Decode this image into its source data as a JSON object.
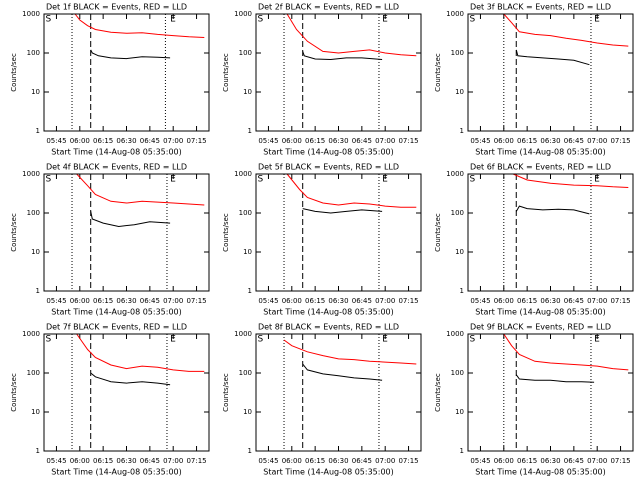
{
  "chart_data": [
    {
      "type": "line",
      "title": "Det 1f BLACK = Events, RED = LLD",
      "xlabel": "Start Time (14-Aug-08 05:35:00)",
      "ylabel": "Counts/sec",
      "ylog": true,
      "xlim": [
        "05:37",
        "07:23"
      ],
      "xticks": [
        "05:45",
        "06:00",
        "06:15",
        "06:30",
        "06:45",
        "07:00",
        "07:15"
      ],
      "ylim": [
        1,
        1000
      ],
      "yticks": [
        1,
        10,
        100,
        1000
      ],
      "vlines": [
        {
          "x": "05:55",
          "style": "dotted"
        },
        {
          "x": "06:07",
          "style": "dashed"
        },
        {
          "x": "06:55",
          "style": "dotted"
        }
      ],
      "markers": [
        {
          "label": "S",
          "x": "05:38"
        },
        {
          "label": "E",
          "x": "06:58"
        }
      ],
      "series": [
        {
          "color": "#000000",
          "x": [
            "06:07",
            "06:08",
            "06:12",
            "06:20",
            "06:30",
            "06:40",
            "06:50",
            "06:58"
          ],
          "values": [
            120,
            100,
            85,
            75,
            72,
            80,
            78,
            75
          ]
        },
        {
          "color": "#ff0000",
          "x": [
            "05:57",
            "06:00",
            "06:05",
            "06:10",
            "06:20",
            "06:30",
            "06:40",
            "06:50",
            "07:00",
            "07:10",
            "07:20"
          ],
          "values": [
            1000,
            700,
            500,
            400,
            340,
            320,
            330,
            300,
            280,
            260,
            250
          ]
        }
      ]
    },
    {
      "type": "line",
      "title": "Det 2f BLACK = Events, RED = LLD",
      "xlabel": "Start Time (14-Aug-08 05:35:00)",
      "ylabel": "Counts/sec",
      "ylog": true,
      "xlim": [
        "05:37",
        "07:23"
      ],
      "xticks": [
        "05:45",
        "06:00",
        "06:15",
        "06:30",
        "06:45",
        "07:00",
        "07:15"
      ],
      "ylim": [
        1,
        1000
      ],
      "yticks": [
        1,
        10,
        100,
        1000
      ],
      "vlines": [
        {
          "x": "05:55",
          "style": "dotted"
        },
        {
          "x": "06:07",
          "style": "dashed"
        },
        {
          "x": "06:56",
          "style": "dotted"
        }
      ],
      "markers": [
        {
          "label": "S",
          "x": "05:38"
        },
        {
          "label": "E",
          "x": "06:58"
        }
      ],
      "series": [
        {
          "color": "#000000",
          "x": [
            "06:07",
            "06:08",
            "06:15",
            "06:25",
            "06:35",
            "06:45",
            "06:58"
          ],
          "values": [
            110,
            85,
            70,
            68,
            75,
            75,
            68
          ]
        },
        {
          "color": "#ff0000",
          "x": [
            "05:57",
            "06:03",
            "06:10",
            "06:20",
            "06:30",
            "06:40",
            "06:50",
            "07:00",
            "07:10",
            "07:20"
          ],
          "values": [
            1000,
            400,
            200,
            110,
            100,
            110,
            120,
            100,
            90,
            85
          ]
        }
      ]
    },
    {
      "type": "line",
      "title": "Det 3f BLACK = Events, RED = LLD",
      "xlabel": "Start Time (14-Aug-08 05:35:00)",
      "ylabel": "Counts/sec",
      "ylog": true,
      "xlim": [
        "05:37",
        "07:23"
      ],
      "xticks": [
        "05:45",
        "06:00",
        "06:15",
        "06:30",
        "06:45",
        "07:00",
        "07:15"
      ],
      "ylim": [
        1,
        1000
      ],
      "yticks": [
        1,
        10,
        100,
        1000
      ],
      "vlines": [
        {
          "x": "06:00",
          "style": "dotted"
        },
        {
          "x": "06:08",
          "style": "dashed"
        },
        {
          "x": "06:56",
          "style": "dotted"
        }
      ],
      "markers": [
        {
          "label": "S",
          "x": "05:38"
        },
        {
          "label": "E",
          "x": "06:58"
        }
      ],
      "series": [
        {
          "color": "#000000",
          "x": [
            "06:08",
            "06:09",
            "06:15",
            "06:25",
            "06:35",
            "06:45",
            "06:55"
          ],
          "values": [
            120,
            85,
            80,
            75,
            70,
            65,
            50
          ]
        },
        {
          "color": "#ff0000",
          "x": [
            "06:00",
            "06:05",
            "06:10",
            "06:20",
            "06:30",
            "06:40",
            "06:50",
            "07:00",
            "07:10",
            "07:20"
          ],
          "values": [
            1000,
            600,
            350,
            300,
            280,
            240,
            210,
            180,
            160,
            150
          ]
        }
      ]
    },
    {
      "type": "line",
      "title": "Det 4f BLACK = Events, RED = LLD",
      "xlabel": "Start Time (14-Aug-08 05:35:00)",
      "ylabel": "Counts/sec",
      "ylog": true,
      "xlim": [
        "05:37",
        "07:23"
      ],
      "xticks": [
        "05:45",
        "06:00",
        "06:15",
        "06:30",
        "06:45",
        "07:00",
        "07:15"
      ],
      "ylim": [
        1,
        1000
      ],
      "yticks": [
        1,
        10,
        100,
        1000
      ],
      "vlines": [
        {
          "x": "05:55",
          "style": "dotted"
        },
        {
          "x": "06:07",
          "style": "dashed"
        },
        {
          "x": "06:56",
          "style": "dotted"
        }
      ],
      "markers": [
        {
          "label": "S",
          "x": "05:38"
        },
        {
          "label": "E",
          "x": "06:58"
        }
      ],
      "series": [
        {
          "color": "#000000",
          "x": [
            "06:07",
            "06:08",
            "06:15",
            "06:25",
            "06:35",
            "06:45",
            "06:58"
          ],
          "values": [
            110,
            70,
            55,
            45,
            50,
            60,
            55
          ]
        },
        {
          "color": "#ff0000",
          "x": [
            "05:58",
            "06:05",
            "06:10",
            "06:20",
            "06:30",
            "06:40",
            "06:50",
            "07:00",
            "07:10",
            "07:20"
          ],
          "values": [
            1000,
            500,
            300,
            200,
            180,
            200,
            190,
            180,
            170,
            160
          ]
        }
      ]
    },
    {
      "type": "line",
      "title": "Det 5f BLACK = Events, RED = LLD",
      "xlabel": "Start Time (14-Aug-08 05:35:00)",
      "ylabel": "Counts/sec",
      "ylog": true,
      "xlim": [
        "05:37",
        "07:23"
      ],
      "xticks": [
        "05:45",
        "06:00",
        "06:15",
        "06:30",
        "06:45",
        "07:00",
        "07:15"
      ],
      "ylim": [
        1,
        1000
      ],
      "yticks": [
        1,
        10,
        100,
        1000
      ],
      "vlines": [
        {
          "x": "05:55",
          "style": "dotted"
        },
        {
          "x": "06:07",
          "style": "dashed"
        },
        {
          "x": "06:56",
          "style": "dotted"
        }
      ],
      "markers": [
        {
          "label": "S",
          "x": "05:38"
        },
        {
          "label": "E",
          "x": "06:58"
        }
      ],
      "series": [
        {
          "color": "#000000",
          "x": [
            "06:07",
            "06:15",
            "06:25",
            "06:35",
            "06:45",
            "06:58"
          ],
          "values": [
            130,
            110,
            100,
            110,
            120,
            110
          ]
        },
        {
          "color": "#ff0000",
          "x": [
            "05:57",
            "06:05",
            "06:10",
            "06:20",
            "06:30",
            "06:40",
            "06:50",
            "07:00",
            "07:10",
            "07:20"
          ],
          "values": [
            1000,
            400,
            250,
            180,
            160,
            180,
            170,
            150,
            140,
            140
          ]
        }
      ]
    },
    {
      "type": "line",
      "title": "Det 6f BLACK = Events, RED = LLD",
      "xlabel": "Start Time (14-Aug-08 05:35:00)",
      "ylabel": "Counts/sec",
      "ylog": true,
      "xlim": [
        "05:37",
        "07:23"
      ],
      "xticks": [
        "05:45",
        "06:00",
        "06:15",
        "06:30",
        "06:45",
        "07:00",
        "07:15"
      ],
      "ylim": [
        1,
        1000
      ],
      "yticks": [
        1,
        10,
        100,
        1000
      ],
      "vlines": [
        {
          "x": "06:00",
          "style": "dotted"
        },
        {
          "x": "06:08",
          "style": "dashed"
        },
        {
          "x": "06:56",
          "style": "dotted"
        }
      ],
      "markers": [
        {
          "label": "S",
          "x": "05:38"
        },
        {
          "label": "E",
          "x": "06:58"
        }
      ],
      "series": [
        {
          "color": "#000000",
          "x": [
            "06:08",
            "06:10",
            "06:15",
            "06:25",
            "06:35",
            "06:45",
            "06:55"
          ],
          "values": [
            110,
            150,
            130,
            120,
            125,
            120,
            95
          ]
        },
        {
          "color": "#ff0000",
          "x": [
            "06:06",
            "06:15",
            "06:30",
            "06:45",
            "07:00",
            "07:10",
            "07:20"
          ],
          "values": [
            1000,
            700,
            580,
            520,
            500,
            470,
            450
          ]
        }
      ]
    },
    {
      "type": "line",
      "title": "Det 7f BLACK = Events, RED = LLD",
      "xlabel": "Start Time (14-Aug-08 05:35:00)",
      "ylabel": "Counts/sec",
      "ylog": true,
      "xlim": [
        "05:37",
        "07:23"
      ],
      "xticks": [
        "05:45",
        "06:00",
        "06:15",
        "06:30",
        "06:45",
        "07:00",
        "07:15"
      ],
      "ylim": [
        1,
        1000
      ],
      "yticks": [
        1,
        10,
        100,
        1000
      ],
      "vlines": [
        {
          "x": "05:55",
          "style": "dotted"
        },
        {
          "x": "06:07",
          "style": "dashed"
        },
        {
          "x": "06:56",
          "style": "dotted"
        }
      ],
      "markers": [
        {
          "label": "S",
          "x": "05:38"
        },
        {
          "label": "E",
          "x": "06:58"
        }
      ],
      "series": [
        {
          "color": "#000000",
          "x": [
            "06:07",
            "06:10",
            "06:20",
            "06:30",
            "06:40",
            "06:50",
            "06:58"
          ],
          "values": [
            100,
            80,
            60,
            55,
            60,
            55,
            50
          ]
        },
        {
          "color": "#ff0000",
          "x": [
            "05:58",
            "06:05",
            "06:10",
            "06:20",
            "06:30",
            "06:40",
            "06:50",
            "07:00",
            "07:10",
            "07:20"
          ],
          "values": [
            1000,
            400,
            250,
            160,
            130,
            150,
            140,
            120,
            110,
            110
          ]
        }
      ]
    },
    {
      "type": "line",
      "title": "Det 8f BLACK = Events, RED = LLD",
      "xlabel": "Start Time (14-Aug-08 05:35:00)",
      "ylabel": "Counts/sec",
      "ylog": true,
      "xlim": [
        "05:37",
        "07:23"
      ],
      "xticks": [
        "05:45",
        "06:00",
        "06:15",
        "06:30",
        "06:45",
        "07:00",
        "07:15"
      ],
      "ylim": [
        1,
        1000
      ],
      "yticks": [
        1,
        10,
        100,
        1000
      ],
      "vlines": [
        {
          "x": "05:55",
          "style": "dotted"
        },
        {
          "x": "06:07",
          "style": "dashed"
        },
        {
          "x": "06:56",
          "style": "dotted"
        }
      ],
      "markers": [
        {
          "label": "S",
          "x": "05:38"
        },
        {
          "label": "E",
          "x": "06:58"
        }
      ],
      "series": [
        {
          "color": "#000000",
          "x": [
            "06:07",
            "06:10",
            "06:20",
            "06:30",
            "06:40",
            "06:50",
            "06:58"
          ],
          "values": [
            170,
            120,
            95,
            85,
            75,
            70,
            65
          ]
        },
        {
          "color": "#ff0000",
          "x": [
            "05:55",
            "06:00",
            "06:10",
            "06:20",
            "06:30",
            "06:40",
            "06:50",
            "07:00",
            "07:10",
            "07:20"
          ],
          "values": [
            700,
            500,
            350,
            280,
            230,
            220,
            200,
            190,
            180,
            170
          ]
        }
      ]
    },
    {
      "type": "line",
      "title": "Det 9f BLACK = Events, RED = LLD",
      "xlabel": "Start Time (14-Aug-08 05:35:00)",
      "ylabel": "Counts/sec",
      "ylog": true,
      "xlim": [
        "05:37",
        "07:23"
      ],
      "xticks": [
        "05:45",
        "06:00",
        "06:15",
        "06:30",
        "06:45",
        "07:00",
        "07:15"
      ],
      "ylim": [
        1,
        1000
      ],
      "yticks": [
        1,
        10,
        100,
        1000
      ],
      "vlines": [
        {
          "x": "06:00",
          "style": "dotted"
        },
        {
          "x": "06:08",
          "style": "dashed"
        },
        {
          "x": "06:56",
          "style": "dotted"
        }
      ],
      "markers": [
        {
          "label": "S",
          "x": "05:38"
        },
        {
          "label": "E",
          "x": "06:58"
        }
      ],
      "series": [
        {
          "color": "#000000",
          "x": [
            "06:08",
            "06:10",
            "06:20",
            "06:30",
            "06:40",
            "06:50",
            "06:58"
          ],
          "values": [
            90,
            70,
            65,
            65,
            60,
            60,
            58
          ]
        },
        {
          "color": "#ff0000",
          "x": [
            "06:00",
            "06:05",
            "06:10",
            "06:20",
            "06:30",
            "06:40",
            "06:50",
            "07:00",
            "07:10",
            "07:20"
          ],
          "values": [
            1000,
            500,
            300,
            200,
            180,
            170,
            160,
            150,
            130,
            120
          ]
        }
      ]
    }
  ]
}
